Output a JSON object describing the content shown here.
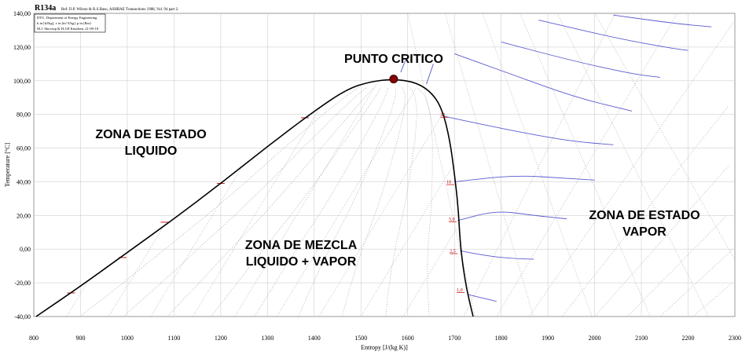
{
  "header": {
    "title": "R134a",
    "reference": "Ref: D.P. Wilson & R.S.Basu, ASHRAE Transactions 1988, Vol. 94 part 2.",
    "info_lines": [
      "DTU, Department of Energy Engineering",
      "h in [kJ/kg], v in [m^3/kg], p in [Bar]",
      "M.J. Skovrup & H.J.H Knudsen, 21-09-18"
    ]
  },
  "annotations": {
    "critical_point": "PUNTO CRITICO",
    "liquid_zone": [
      "ZONA DE ESTADO",
      "LIQUIDO"
    ],
    "mixture_zone": [
      "ZONA DE MEZCLA",
      "LIQUIDO + VAPOR"
    ],
    "vapor_zone": [
      "ZONA DE ESTADO",
      "VAPOR"
    ]
  },
  "colors": {
    "dome": "#000000",
    "critical_point": "#8b0000",
    "isobar": "#5a5ad0",
    "pressure_label": "#c00000",
    "grid": "#cfcfcf",
    "dotted_lines": "#9a9a9a"
  },
  "chart_data": {
    "type": "line",
    "xlabel": "Entropy [J/(kg K)]",
    "ylabel": "Temperature [°C]",
    "xlim": [
      800,
      2300
    ],
    "ylim": [
      -40,
      140
    ],
    "x_ticks": [
      "800",
      "900",
      "1000",
      "1100",
      "1200",
      "1300",
      "1400",
      "1500",
      "1600",
      "1700",
      "1800",
      "1900",
      "2000",
      "2100",
      "2200",
      "2300"
    ],
    "y_ticks": [
      "-40,00",
      "-20,00",
      "0,00",
      "20,00",
      "40,00",
      "60,00",
      "80,00",
      "100,00",
      "120,00",
      "140,00"
    ],
    "grid": true,
    "critical_point": {
      "s": 1570,
      "T": 101
    },
    "saturation_curve": [
      {
        "s": 805,
        "T": -40
      },
      {
        "s": 900,
        "T": -22
      },
      {
        "s": 1000,
        "T": -2
      },
      {
        "s": 1100,
        "T": 18
      },
      {
        "s": 1200,
        "T": 39
      },
      {
        "s": 1300,
        "T": 61
      },
      {
        "s": 1400,
        "T": 82
      },
      {
        "s": 1470,
        "T": 95
      },
      {
        "s": 1520,
        "T": 99.5
      },
      {
        "s": 1570,
        "T": 101
      },
      {
        "s": 1620,
        "T": 99
      },
      {
        "s": 1655,
        "T": 92
      },
      {
        "s": 1675,
        "T": 82
      },
      {
        "s": 1690,
        "T": 65
      },
      {
        "s": 1700,
        "T": 45
      },
      {
        "s": 1708,
        "T": 25
      },
      {
        "s": 1712,
        "T": 5
      },
      {
        "s": 1718,
        "T": -10
      },
      {
        "s": 1727,
        "T": -25
      },
      {
        "s": 1740,
        "T": -40
      }
    ],
    "isobars": [
      {
        "label": "1,0",
        "label_s": 1705,
        "label_T": -25,
        "points": [
          {
            "s": 1730,
            "T": -27
          },
          {
            "s": 1760,
            "T": -29
          },
          {
            "s": 1790,
            "T": -31
          }
        ]
      },
      {
        "label": "2,5",
        "label_s": 1690,
        "label_T": -2,
        "points": [
          {
            "s": 1712,
            "T": -1
          },
          {
            "s": 1770,
            "T": -4
          },
          {
            "s": 1820,
            "T": -5.5
          },
          {
            "s": 1870,
            "T": -6
          }
        ]
      },
      {
        "label": "5,0",
        "label_s": 1688,
        "label_T": 17,
        "points": [
          {
            "s": 1707,
            "T": 17
          },
          {
            "s": 1790,
            "T": 23
          },
          {
            "s": 1870,
            "T": 20
          },
          {
            "s": 1940,
            "T": 18
          }
        ]
      },
      {
        "label": "10",
        "label_s": 1683,
        "label_T": 39,
        "points": [
          {
            "s": 1700,
            "T": 40
          },
          {
            "s": 1830,
            "T": 44
          },
          {
            "s": 1940,
            "T": 42
          },
          {
            "s": 2000,
            "T": 41
          }
        ]
      },
      {
        "label": "25",
        "label_s": 1670,
        "label_T": 79,
        "points": [
          {
            "s": 1676,
            "T": 79
          },
          {
            "s": 1760,
            "T": 74
          },
          {
            "s": 1850,
            "T": 69
          },
          {
            "s": 1950,
            "T": 64
          },
          {
            "s": 2040,
            "T": 62
          }
        ]
      },
      {
        "label": "",
        "label_s": 0,
        "label_T": 0,
        "points": [
          {
            "s": 1700,
            "T": 116
          },
          {
            "s": 1820,
            "T": 104
          },
          {
            "s": 1960,
            "T": 90
          },
          {
            "s": 2080,
            "T": 82
          }
        ]
      },
      {
        "label": "",
        "label_s": 0,
        "label_T": 0,
        "points": [
          {
            "s": 1800,
            "T": 123
          },
          {
            "s": 1950,
            "T": 112
          },
          {
            "s": 2080,
            "T": 104
          },
          {
            "s": 2140,
            "T": 102
          }
        ]
      },
      {
        "label": "",
        "label_s": 0,
        "label_T": 0,
        "points": [
          {
            "s": 1880,
            "T": 136
          },
          {
            "s": 2050,
            "T": 125
          },
          {
            "s": 2170,
            "T": 119
          },
          {
            "s": 2200,
            "T": 118
          }
        ]
      },
      {
        "label": "",
        "label_s": 0,
        "label_T": 0,
        "points": [
          {
            "s": 2040,
            "T": 139
          },
          {
            "s": 2170,
            "T": 134
          },
          {
            "s": 2250,
            "T": 132
          }
        ]
      },
      {
        "label": "",
        "label_s": 0,
        "label_T": 0,
        "points": [
          {
            "s": 1585,
            "T": 105
          },
          {
            "s": 1595,
            "T": 112
          }
        ]
      },
      {
        "label": "",
        "label_s": 0,
        "label_T": 0,
        "points": [
          {
            "s": 1640,
            "T": 98
          },
          {
            "s": 1655,
            "T": 110
          }
        ]
      }
    ],
    "liquid_markers": [
      {
        "s": 880,
        "T": -26
      },
      {
        "s": 990,
        "T": -5
      },
      {
        "s": 1080,
        "T": 16
      },
      {
        "s": 1200,
        "T": 39
      },
      {
        "s": 1380,
        "T": 78
      }
    ]
  }
}
